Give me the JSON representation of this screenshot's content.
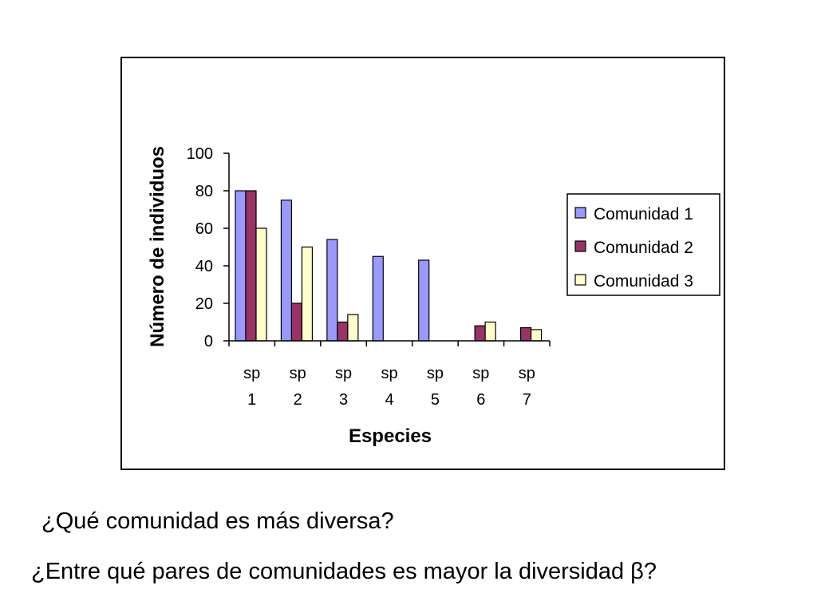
{
  "chart_data": {
    "type": "bar",
    "title": "",
    "xlabel": "Especies",
    "ylabel": "Número de individuos",
    "ylim": [
      0,
      100
    ],
    "yticks": [
      0,
      20,
      40,
      60,
      80,
      100
    ],
    "categories": [
      [
        "sp",
        "1"
      ],
      [
        "sp",
        "2"
      ],
      [
        "sp",
        "3"
      ],
      [
        "sp",
        "4"
      ],
      [
        "sp",
        "5"
      ],
      [
        "sp",
        "6"
      ],
      [
        "sp",
        "7"
      ]
    ],
    "series": [
      {
        "name": "Comunidad 1",
        "color": "#9999ff",
        "values": [
          80,
          75,
          54,
          45,
          43,
          0,
          0
        ]
      },
      {
        "name": "Comunidad 2",
        "color": "#993366",
        "values": [
          80,
          20,
          10,
          0,
          0,
          8,
          7
        ]
      },
      {
        "name": "Comunidad 3",
        "color": "#ffffcc",
        "values": [
          60,
          50,
          14,
          0,
          0,
          10,
          6
        ]
      }
    ],
    "legend_position": "right",
    "grid": false
  },
  "questions": {
    "q1": "¿Qué comunidad es más diversa?",
    "q2": "¿Entre qué pares de comunidades es mayor la diversidad β?"
  }
}
